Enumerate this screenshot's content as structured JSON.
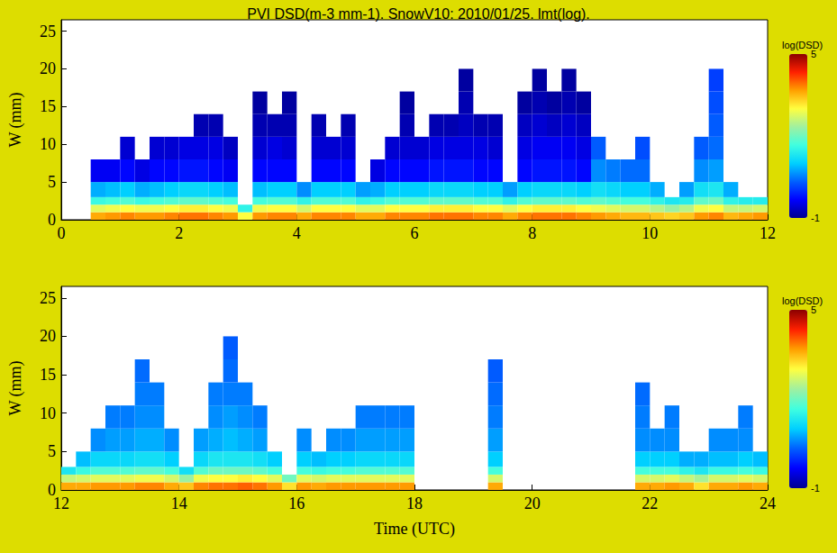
{
  "chart_data": [
    {
      "type": "heatmap",
      "title": "PVI DSD(m-3 mm-1). SnowV10: 2010/01/25. lmt(log).",
      "y_label": "W (mm)",
      "xlim": [
        0,
        12
      ],
      "xticks": [
        0,
        2,
        4,
        6,
        8,
        10,
        12
      ],
      "ylim": [
        0,
        26.5
      ],
      "yticks": [
        0,
        5,
        10,
        15,
        20,
        25
      ],
      "grid": false,
      "x_bins": [
        0,
        0.25,
        0.5,
        0.75,
        1,
        1.25,
        1.5,
        1.75,
        2,
        2.25,
        2.5,
        2.75,
        3,
        3.25,
        3.5,
        3.75,
        4,
        4.25,
        4.5,
        4.75,
        5,
        5.25,
        5.5,
        5.75,
        6,
        6.25,
        6.5,
        6.75,
        7,
        7.25,
        7.5,
        7.75,
        8,
        8.25,
        8.5,
        8.75,
        9,
        9.25,
        9.5,
        9.75,
        10,
        10.25,
        10.5,
        10.75,
        11,
        11.25,
        11.5,
        11.75,
        12
      ],
      "y_bins": [
        0,
        1,
        2,
        3,
        5,
        8,
        11,
        14,
        17,
        20
      ],
      "cells": [
        [],
        [],
        [
          3.6,
          2.8,
          1.6,
          0.8,
          -0.4
        ],
        [
          3.7,
          2.9,
          1.7,
          0.9,
          -0.4
        ],
        [
          3.8,
          3.0,
          1.8,
          1.0,
          -0.3,
          -0.6
        ],
        [
          3.7,
          2.9,
          1.6,
          0.8,
          -0.5
        ],
        [
          3.7,
          2.9,
          1.7,
          0.9,
          -0.3,
          -0.6
        ],
        [
          3.8,
          3.0,
          1.8,
          1.0,
          -0.3,
          -0.6
        ],
        [
          3.9,
          3.1,
          1.9,
          1.1,
          -0.2,
          -0.5
        ],
        [
          3.9,
          3.1,
          1.9,
          1.1,
          -0.2,
          -0.5,
          -0.8
        ],
        [
          3.8,
          3.0,
          1.8,
          1.0,
          -0.3,
          -0.5,
          -0.8
        ],
        [
          3.7,
          2.9,
          1.7,
          0.9,
          -0.4,
          -0.7
        ],
        [
          3.0,
          1.5
        ],
        [
          3.7,
          2.9,
          1.7,
          0.9,
          -0.3,
          -0.6,
          -0.8,
          -0.9
        ],
        [
          3.8,
          3.0,
          1.8,
          1.0,
          -0.3,
          -0.5,
          -0.8
        ],
        [
          3.8,
          3.0,
          1.8,
          1.0,
          -0.3,
          -0.6,
          -0.8,
          -0.9
        ],
        [
          3.6,
          2.7,
          1.5,
          0.6
        ],
        [
          3.8,
          3.0,
          1.8,
          1.0,
          -0.3,
          -0.6,
          -0.8
        ],
        [
          3.8,
          3.0,
          1.8,
          1.0,
          -0.3,
          -0.6
        ],
        [
          3.8,
          3.0,
          1.8,
          1.0,
          -0.3,
          -0.6,
          -0.8
        ],
        [
          3.6,
          2.8,
          1.5,
          0.7
        ],
        [
          3.6,
          2.8,
          1.6,
          0.8,
          -0.5
        ],
        [
          3.8,
          3.0,
          1.8,
          1.0,
          -0.3,
          -0.6
        ],
        [
          3.8,
          3.0,
          1.8,
          1.0,
          -0.3,
          -0.6,
          -0.8,
          -0.9
        ],
        [
          3.8,
          3.0,
          1.8,
          1.0,
          -0.3,
          -0.6
        ],
        [
          3.9,
          3.1,
          1.9,
          1.1,
          -0.2,
          -0.5,
          -0.8
        ],
        [
          3.9,
          3.1,
          1.9,
          1.1,
          -0.2,
          -0.5,
          -0.8
        ],
        [
          3.9,
          3.1,
          1.9,
          1.1,
          -0.2,
          -0.5,
          -0.7,
          -0.8,
          -0.9
        ],
        [
          3.8,
          3.0,
          1.8,
          1.0,
          -0.3,
          -0.5,
          -0.8
        ],
        [
          3.8,
          3.0,
          1.8,
          1.0,
          -0.3,
          -0.6,
          -0.8
        ],
        [
          3.6,
          2.8,
          1.5,
          0.7
        ],
        [
          3.8,
          3.0,
          1.8,
          1.0,
          -0.3,
          -0.5,
          -0.7,
          -0.9
        ],
        [
          3.9,
          3.1,
          1.9,
          1.1,
          -0.2,
          -0.4,
          -0.6,
          -0.8,
          -0.9
        ],
        [
          3.9,
          3.1,
          1.9,
          1.1,
          -0.2,
          -0.4,
          -0.7,
          -0.9
        ],
        [
          3.9,
          3.1,
          1.9,
          1.1,
          -0.2,
          -0.4,
          -0.6,
          -0.8,
          -0.9
        ],
        [
          3.8,
          3.0,
          1.8,
          1.0,
          -0.3,
          -0.5,
          -0.7,
          -0.9
        ],
        [
          3.7,
          2.9,
          1.9,
          1.2,
          0.6,
          0.3
        ],
        [
          3.6,
          2.8,
          1.8,
          1.1,
          0.5
        ],
        [
          3.5,
          2.7,
          1.7,
          1.0,
          0.4
        ],
        [
          3.5,
          2.7,
          1.7,
          1.0,
          0.4,
          0.2
        ],
        [
          3.4,
          2.5,
          1.5,
          0.8
        ],
        [
          3.3,
          2.3,
          1.3
        ],
        [
          3.4,
          2.5,
          1.4,
          0.7
        ],
        [
          3.7,
          2.9,
          1.9,
          1.2,
          0.6,
          0.3
        ],
        [
          3.8,
          3.0,
          2.0,
          1.3,
          0.7,
          0.4,
          0.3,
          0.2,
          0.1
        ],
        [
          3.5,
          2.6,
          1.5,
          0.8
        ],
        [
          3.6,
          2.6,
          1.4
        ],
        [
          3.7,
          2.7,
          1.4
        ]
      ],
      "colorbar": {
        "label": "log(DSD)",
        "range": [
          -1,
          5
        ],
        "ticks": [
          -1,
          5
        ]
      }
    },
    {
      "type": "heatmap",
      "x_label": "Time (UTC)",
      "y_label": "W (mm)",
      "xlim": [
        12,
        24
      ],
      "xticks": [
        12,
        14,
        16,
        18,
        20,
        22,
        24
      ],
      "ylim": [
        0,
        26.5
      ],
      "yticks": [
        0,
        5,
        10,
        15,
        20,
        25
      ],
      "grid": false,
      "x_bins": [
        12,
        12.25,
        12.5,
        12.75,
        13,
        13.25,
        13.5,
        13.75,
        14,
        14.25,
        14.5,
        14.75,
        15,
        15.25,
        15.5,
        15.75,
        16,
        16.25,
        16.5,
        16.75,
        17,
        17.25,
        17.5,
        17.75,
        18,
        18.25,
        18.5,
        18.75,
        19,
        19.25,
        19.5,
        19.75,
        20,
        20.25,
        20.5,
        20.75,
        21,
        21.25,
        21.5,
        21.75,
        22,
        22.25,
        22.5,
        22.75,
        23,
        23.25,
        23.5,
        23.75,
        24
      ],
      "y_bins": [
        0,
        1,
        2,
        3,
        5,
        8,
        11,
        14,
        17,
        20
      ],
      "cells": [
        [
          3.6,
          2.6,
          1.3
        ],
        [
          3.6,
          2.7,
          1.6,
          0.9
        ],
        [
          3.7,
          2.8,
          1.8,
          1.1,
          0.6
        ],
        [
          3.7,
          2.8,
          1.8,
          1.1,
          0.7,
          0.5
        ],
        [
          3.7,
          2.8,
          1.8,
          1.1,
          0.7,
          0.5
        ],
        [
          3.8,
          2.9,
          1.9,
          1.2,
          0.8,
          0.6,
          0.5,
          0.4
        ],
        [
          3.8,
          2.9,
          1.9,
          1.2,
          0.8,
          0.6,
          0.5
        ],
        [
          3.6,
          2.7,
          1.7,
          1.0,
          0.6
        ],
        [
          3.4,
          2.3,
          1.2
        ],
        [
          3.8,
          2.9,
          1.8,
          1.1,
          0.7
        ],
        [
          3.9,
          3.0,
          2.0,
          1.3,
          0.8,
          0.6,
          0.5
        ],
        [
          3.9,
          3.0,
          2.0,
          1.3,
          0.9,
          0.7,
          0.5,
          0.4,
          0.3
        ],
        [
          4.0,
          3.1,
          2.0,
          1.3,
          0.8,
          0.6,
          0.5
        ],
        [
          3.9,
          3.0,
          1.9,
          1.2,
          0.7,
          0.5
        ],
        [
          3.7,
          2.8,
          1.7,
          1.0
        ],
        [
          3.2,
          2.0
        ],
        [
          3.7,
          2.8,
          1.7,
          1.0,
          0.6
        ],
        [
          3.6,
          2.7,
          1.6,
          0.9
        ],
        [
          3.7,
          2.8,
          1.7,
          1.0,
          0.6
        ],
        [
          3.7,
          2.8,
          1.7,
          1.0,
          0.6
        ],
        [
          3.7,
          2.8,
          1.8,
          1.1,
          0.7,
          0.5
        ],
        [
          3.7,
          2.8,
          1.8,
          1.1,
          0.7,
          0.5
        ],
        [
          3.7,
          2.8,
          1.8,
          1.1,
          0.7,
          0.5
        ],
        [
          3.7,
          2.8,
          1.8,
          1.1,
          0.7,
          0.5
        ],
        [],
        [],
        [],
        [],
        [],
        [
          3.6,
          2.7,
          1.7,
          1.0,
          0.7,
          0.5,
          0.4,
          0.3
        ],
        [],
        [],
        [],
        [],
        [],
        [],
        [],
        [],
        [],
        [
          3.6,
          2.7,
          1.7,
          1.0,
          0.6,
          0.5,
          0.4
        ],
        [
          3.6,
          2.7,
          1.7,
          1.0,
          0.6
        ],
        [
          3.7,
          2.8,
          1.7,
          1.0,
          0.6,
          0.5
        ],
        [
          3.6,
          2.6,
          1.5,
          0.8
        ],
        [
          3.2,
          2.4,
          1.3,
          0.8
        ],
        [
          3.6,
          2.7,
          1.6,
          0.9,
          0.6
        ],
        [
          3.6,
          2.7,
          1.6,
          0.9,
          0.6
        ],
        [
          3.7,
          2.8,
          1.7,
          1.0,
          0.6,
          0.5
        ],
        [
          3.6,
          2.7,
          1.6,
          0.9
        ]
      ],
      "colorbar": {
        "label": "log(DSD)",
        "range": [
          -1,
          5
        ],
        "ticks": [
          -1,
          5
        ]
      }
    }
  ]
}
